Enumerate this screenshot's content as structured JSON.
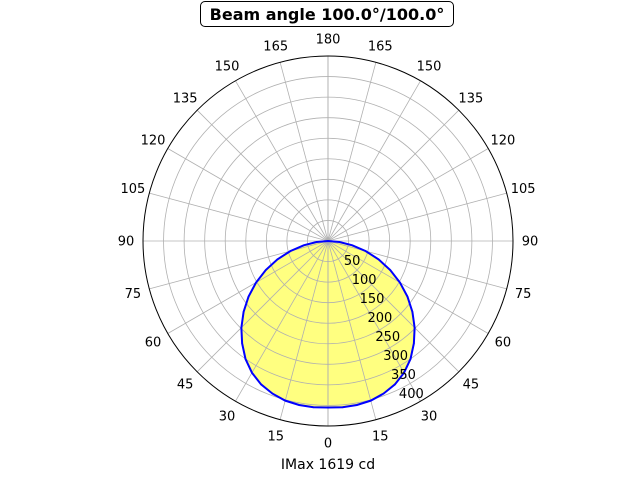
{
  "chart_data": {
    "type": "polar",
    "title": "Beam angle 100.0°/100.0°",
    "xlabel": "IMax 1619 cd",
    "angular_tick_labels_left": [
      "0",
      "15",
      "30",
      "45",
      "60",
      "75",
      "90",
      "105",
      "120",
      "135",
      "150",
      "165",
      "180"
    ],
    "angular_tick_labels_right": [
      "0",
      "15",
      "30",
      "45",
      "60",
      "75",
      "90",
      "105",
      "120",
      "135",
      "150",
      "165",
      "180"
    ],
    "angle_step_deg": 15,
    "radial_ticks": [
      50,
      100,
      150,
      200,
      250,
      300,
      350,
      400
    ],
    "rmax": 450,
    "grid": true,
    "series": [
      {
        "angles_deg": [
          0,
          5,
          10,
          15,
          20,
          25,
          30,
          35,
          40,
          45,
          50,
          55,
          60,
          65,
          70,
          75,
          80,
          85,
          90
        ],
        "values": [
          405,
          406,
          405,
          402,
          395,
          385,
          370,
          350,
          325,
          298,
          268,
          236,
          202,
          167,
          131,
          95,
          60,
          28,
          0
        ],
        "line_color": "#0000ff",
        "fill_color": "#ffff80"
      }
    ]
  }
}
